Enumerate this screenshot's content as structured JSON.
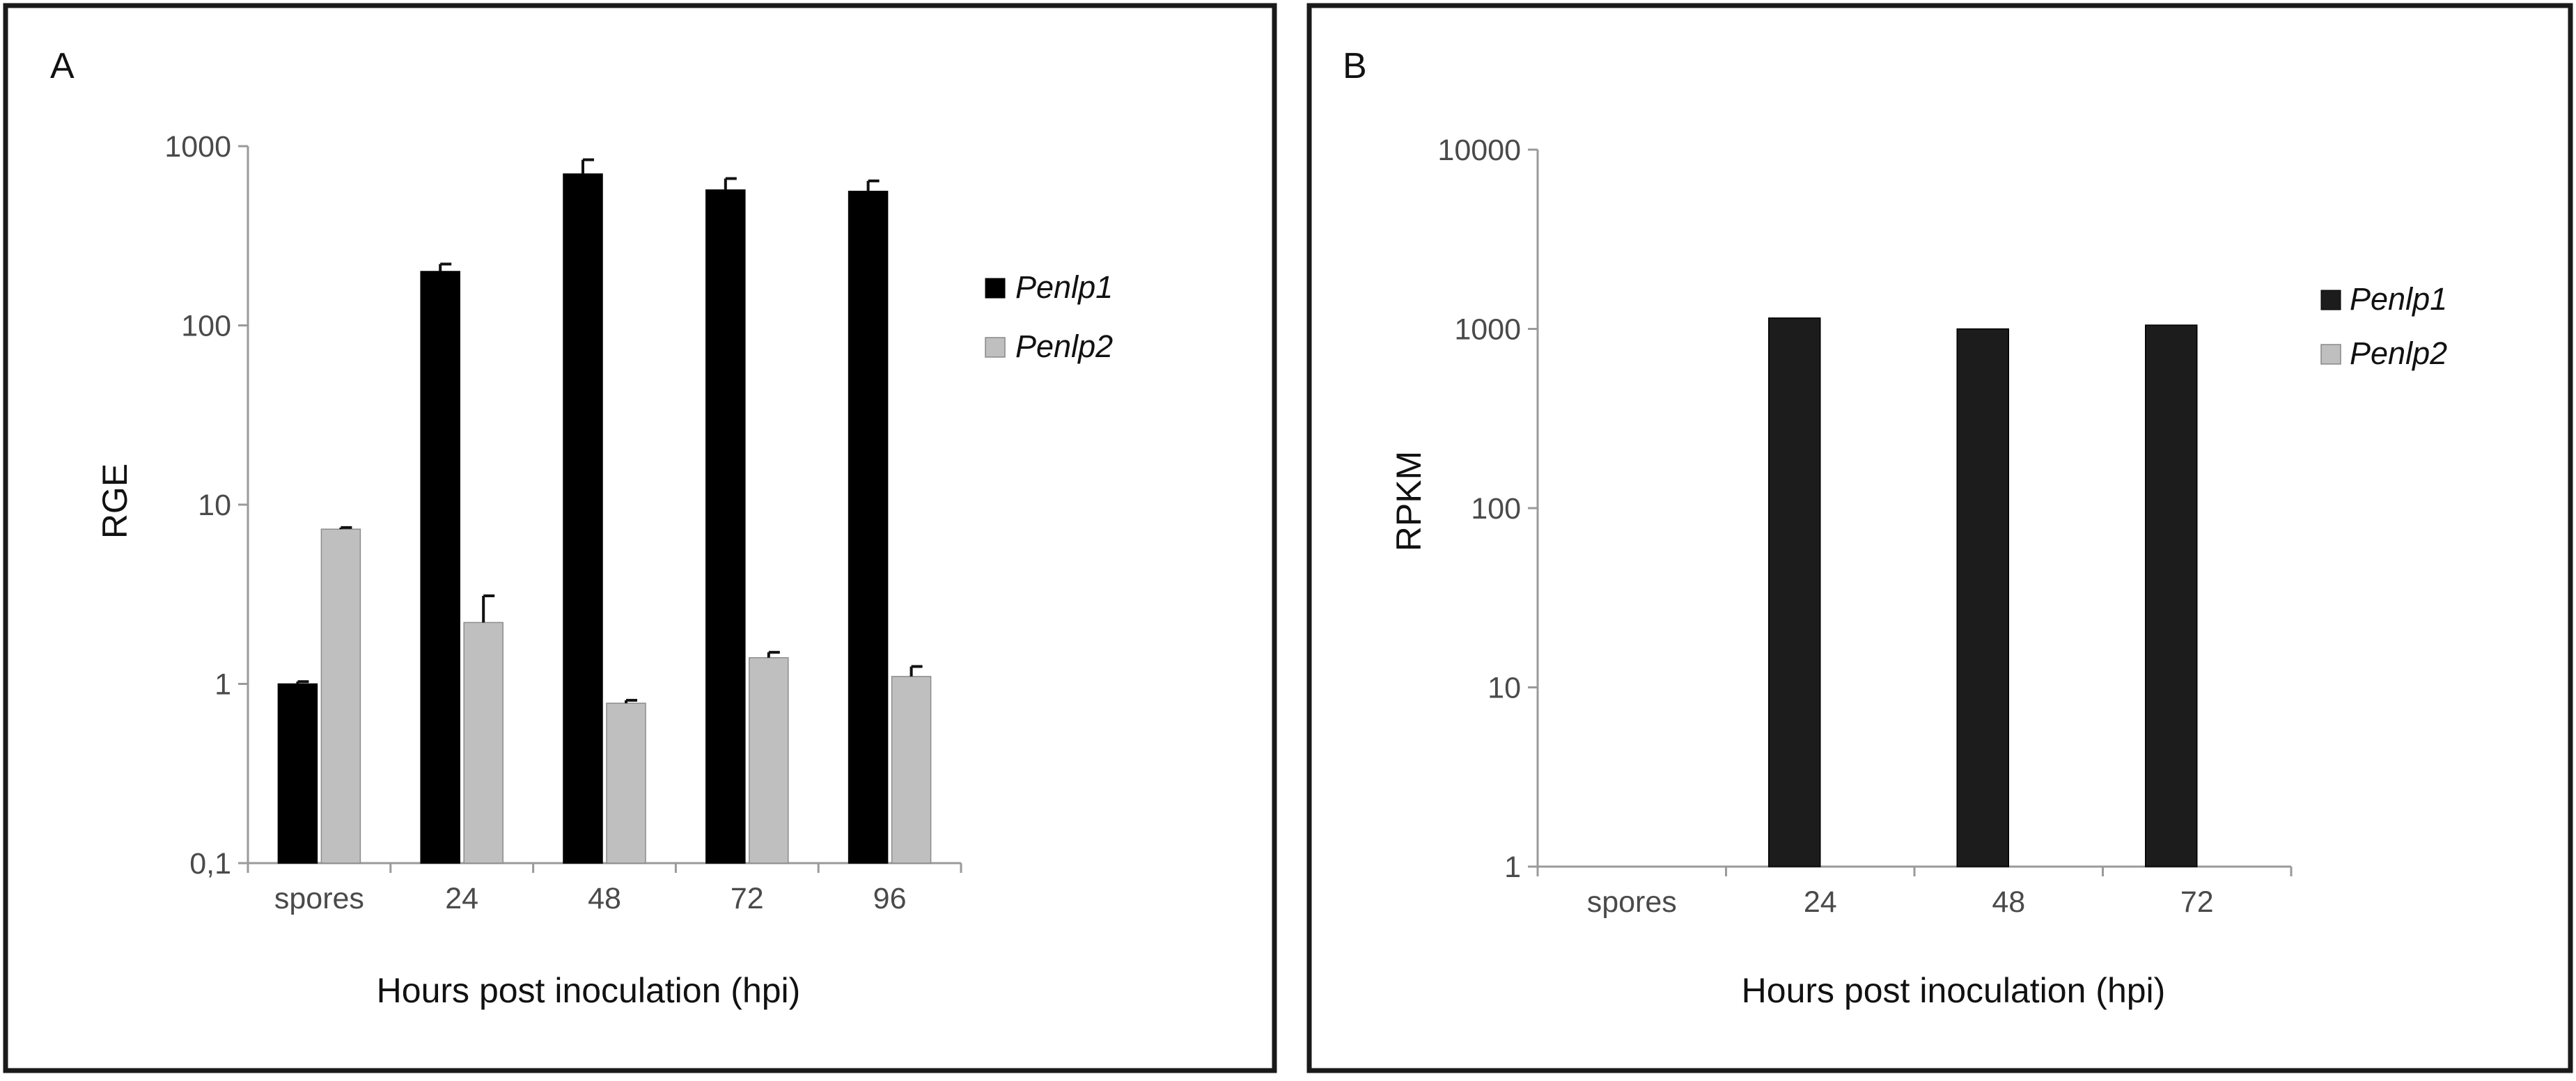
{
  "chart_data": [
    {
      "type": "bar",
      "panel_label": "A",
      "scale": "log",
      "categories": [
        "spores",
        "24",
        "48",
        "72",
        "96"
      ],
      "series": [
        {
          "name": "Penlp1",
          "color": "#000000",
          "values": [
            1.0,
            200,
            700,
            570,
            560
          ],
          "errors": [
            0.03,
            20,
            140,
            90,
            80
          ]
        },
        {
          "name": "Penlp2",
          "color": "#bfbfbf",
          "values": [
            7.3,
            2.2,
            0.78,
            1.4,
            1.1
          ],
          "errors": [
            0.15,
            0.9,
            0.03,
            0.1,
            0.15
          ]
        }
      ],
      "yticks": [
        0.1,
        1,
        10,
        100,
        1000
      ],
      "ytick_labels": [
        "0,1",
        "1",
        "10",
        "100",
        "1000"
      ],
      "ylim": [
        0.1,
        1000
      ],
      "xlabel": "Hours post inoculation (hpi)",
      "ylabel": "RGE",
      "legend": "right"
    },
    {
      "type": "bar",
      "panel_label": "B",
      "scale": "log",
      "categories": [
        "spores",
        "24",
        "48",
        "72"
      ],
      "series": [
        {
          "name": "Penlp1",
          "color": "#1c1c1c",
          "values": [
            null,
            1150,
            1000,
            1050
          ]
        },
        {
          "name": "Penlp2",
          "color": "#bfbfbf",
          "values": [
            null,
            null,
            null,
            null
          ]
        }
      ],
      "yticks": [
        1,
        10,
        100,
        1000,
        10000
      ],
      "ytick_labels": [
        "1",
        "10",
        "100",
        "1000",
        "10000"
      ],
      "ylim": [
        1,
        10000
      ],
      "xlabel": "Hours post inoculation (hpi)",
      "ylabel": "RPKM",
      "legend": "right"
    }
  ]
}
